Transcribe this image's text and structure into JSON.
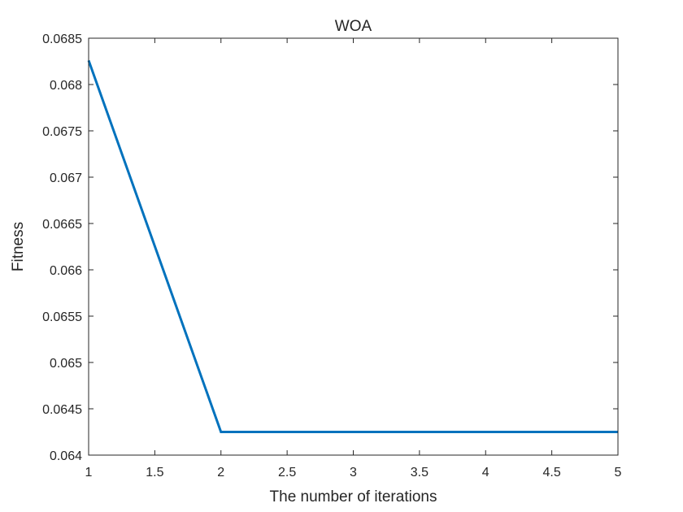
{
  "chart_data": {
    "type": "line",
    "title": "WOA",
    "xlabel": "The number of iterations",
    "ylabel": "Fitness",
    "xlim": [
      1,
      5
    ],
    "ylim": [
      0.064,
      0.0685
    ],
    "x_ticks": [
      1,
      1.5,
      2,
      2.5,
      3,
      3.5,
      4,
      4.5,
      5
    ],
    "x_tick_labels": [
      "1",
      "1.5",
      "2",
      "2.5",
      "3",
      "3.5",
      "4",
      "4.5",
      "5"
    ],
    "y_ticks": [
      0.064,
      0.0645,
      0.065,
      0.0655,
      0.066,
      0.0665,
      0.067,
      0.0675,
      0.068,
      0.0685
    ],
    "y_tick_labels": [
      "0.064",
      "0.0645",
      "0.065",
      "0.0655",
      "0.066",
      "0.0665",
      "0.067",
      "0.0675",
      "0.068",
      "0.0685"
    ],
    "grid": false,
    "series": [
      {
        "x": [
          1,
          2,
          3,
          4,
          5
        ],
        "y": [
          0.06826,
          0.06425,
          0.06425,
          0.06425,
          0.06425
        ],
        "color": "#0072BD"
      }
    ]
  }
}
